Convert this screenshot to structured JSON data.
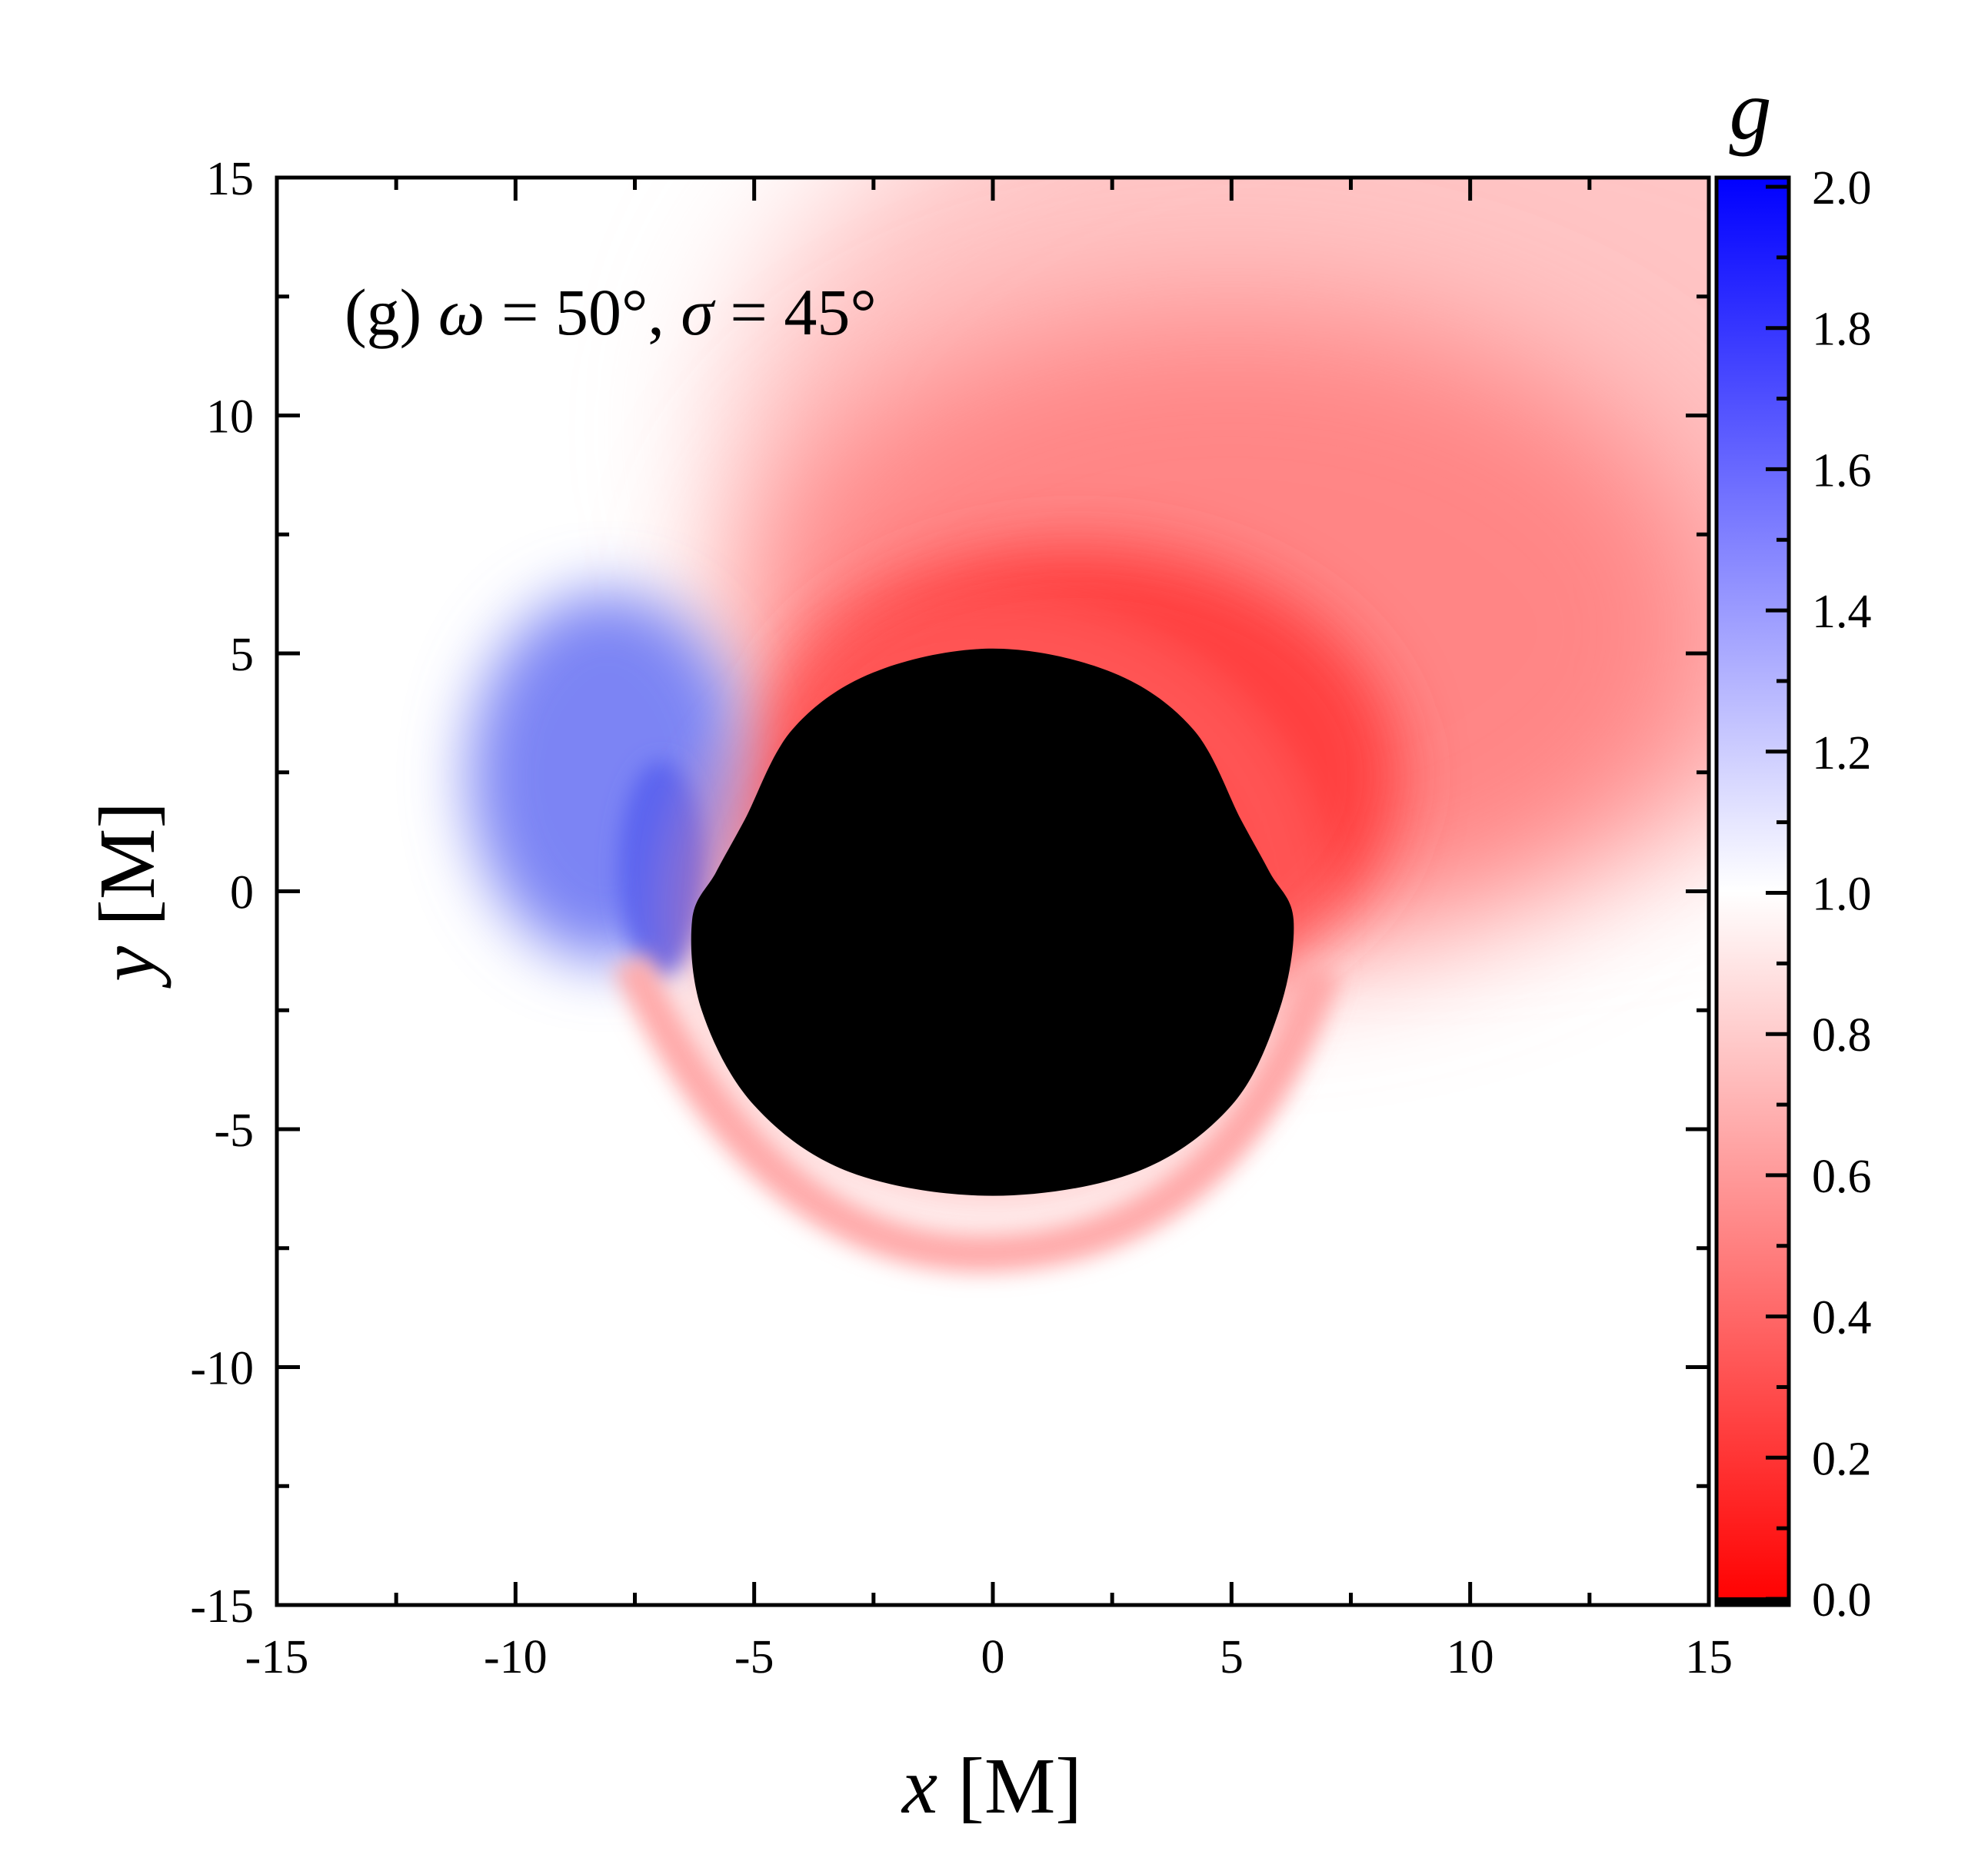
{
  "chart_data": {
    "type": "heatmap",
    "annotation": {
      "prefix": "(g) ",
      "omega_symbol": "ω",
      "omega_value": " = 50°, ",
      "sigma_symbol": "σ",
      "sigma_value": " = 45°"
    },
    "xlabel": {
      "var": "x",
      "unit": " [M]"
    },
    "ylabel": {
      "var": "y",
      "unit": " [M]"
    },
    "xlim": [
      -15,
      15
    ],
    "ylim": [
      -15,
      15
    ],
    "xticks": [
      -15,
      -10,
      -5,
      0,
      5,
      10,
      15
    ],
    "yticks": [
      -15,
      -10,
      -5,
      0,
      5,
      10,
      15
    ],
    "xtick_labels": [
      "-15",
      "-10",
      "-5",
      "0",
      "5",
      "10",
      "15"
    ],
    "ytick_labels": [
      "-15",
      "-10",
      "-5",
      "0",
      "5",
      "10",
      "15"
    ],
    "colorbar": {
      "title": "g",
      "range": [
        0.0,
        2.0
      ],
      "ticks": [
        0.0,
        0.2,
        0.4,
        0.6,
        0.8,
        1.0,
        1.2,
        1.4,
        1.6,
        1.8,
        2.0
      ],
      "tick_labels": [
        "0.0",
        "0.2",
        "0.4",
        "0.6",
        "0.8",
        "1.0",
        "1.2",
        "1.4",
        "1.6",
        "1.8",
        "2.0"
      ],
      "colors": {
        "low": "#ff0000",
        "mid": "#ffffff",
        "high": "#0000ff"
      }
    },
    "shadow": {
      "color": "#000000",
      "outline": [
        [
          0,
          5.1
        ],
        [
          2.5,
          4.6
        ],
        [
          4.2,
          3.4
        ],
        [
          5.2,
          1.5
        ],
        [
          5.8,
          0.4
        ],
        [
          6.3,
          -0.6
        ],
        [
          6.0,
          -2.5
        ],
        [
          5.0,
          -4.5
        ],
        [
          3.0,
          -5.9
        ],
        [
          0,
          -6.4
        ],
        [
          -3.0,
          -5.9
        ],
        [
          -5.0,
          -4.5
        ],
        [
          -6.1,
          -2.5
        ],
        [
          -6.3,
          -0.6
        ],
        [
          -5.8,
          0.4
        ],
        [
          -5.2,
          1.5
        ],
        [
          -4.2,
          3.4
        ],
        [
          -2.5,
          4.6
        ]
      ]
    },
    "grid": false
  }
}
